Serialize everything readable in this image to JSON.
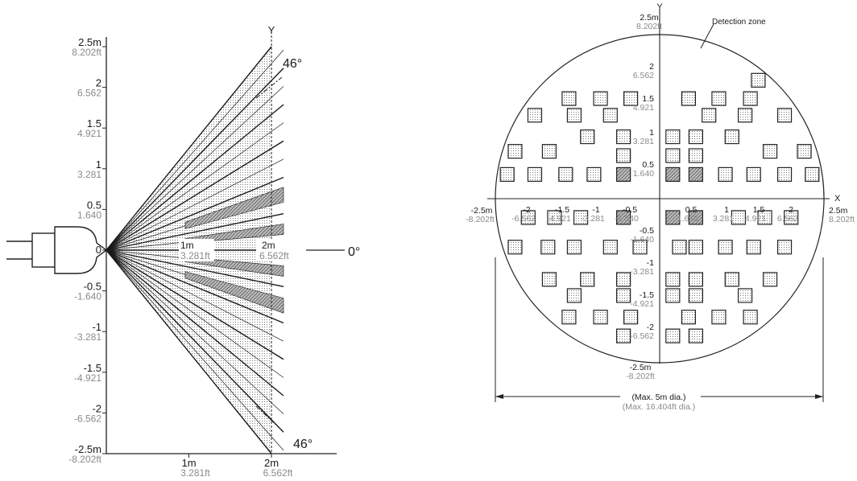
{
  "side_view": {
    "y_axis_title": "Y",
    "y_ticks": [
      {
        "m": "2.5m",
        "ft": "8.202ft",
        "value": 2.5
      },
      {
        "m": "2",
        "ft": "6.562",
        "value": 2
      },
      {
        "m": "1.5",
        "ft": "4.921",
        "value": 1.5
      },
      {
        "m": "1",
        "ft": "3.281",
        "value": 1
      },
      {
        "m": "0.5",
        "ft": "1.640",
        "value": 0.5
      },
      {
        "m": "0",
        "ft": "",
        "value": 0
      },
      {
        "m": "-0.5",
        "ft": "-1.640",
        "value": -0.5
      },
      {
        "m": "-1",
        "ft": "-3.281",
        "value": -1
      },
      {
        "m": "-1.5",
        "ft": "-4.921",
        "value": -1.5
      },
      {
        "m": "-2",
        "ft": "-6.562",
        "value": -2
      },
      {
        "m": "-2.5m",
        "ft": "-8.202ft",
        "value": -2.5
      }
    ],
    "x_ticks": [
      {
        "m": "1m",
        "ft": "3.281ft",
        "value": 1
      },
      {
        "m": "2m",
        "ft": "6.562ft",
        "value": 2
      }
    ],
    "inner_labels": [
      {
        "m": "1m",
        "ft": "3.281ft"
      },
      {
        "m": "2m",
        "ft": "6.562ft"
      }
    ],
    "angle_top": "46°",
    "angle_bottom": "46°",
    "angle_center": "0°",
    "max_half_width_m": 2.5,
    "reach_m": 2
  },
  "top_view": {
    "y_axis_title": "Y",
    "x_axis_title": "X",
    "detection_zone_label": "Detection zone",
    "y_top": {
      "m": "2.5m",
      "ft": "8.202ft"
    },
    "y_bottom": {
      "m": "-2.5m",
      "ft": "-8.202ft"
    },
    "y_ticks_pos": [
      {
        "m": "2",
        "ft": "6.562"
      },
      {
        "m": "1.5",
        "ft": "4.921"
      },
      {
        "m": "1",
        "ft": "3.281"
      },
      {
        "m": "0.5",
        "ft": "1.640"
      }
    ],
    "y_ticks_neg": [
      {
        "m": "-0.5",
        "ft": "-1.640"
      },
      {
        "m": "-1",
        "ft": "-3.281"
      },
      {
        "m": "-1.5",
        "ft": "-4.921"
      },
      {
        "m": "-2",
        "ft": "-6.562"
      }
    ],
    "x_left": {
      "m": "-2.5m",
      "ft": "-8.202ft"
    },
    "x_right": {
      "m": "2.5m",
      "ft": "8.202ft"
    },
    "x_ticks_neg": [
      {
        "m": "-2",
        "ft": "-6.562"
      },
      {
        "m": "-1.5",
        "ft": "-4.921"
      },
      {
        "m": "-1",
        "ft": "-3.281"
      },
      {
        "m": "-0.5",
        "ft": "-1.640"
      }
    ],
    "x_ticks_pos": [
      {
        "m": "0.5",
        "ft": "1.640"
      },
      {
        "m": "1",
        "ft": "3.281"
      },
      {
        "m": "1.5",
        "ft": "4.921"
      },
      {
        "m": "2",
        "ft": "6.562"
      }
    ],
    "diameter_m": "(Max. 5m dia.)",
    "diameter_ft": "(Max. 16.404ft dia.)"
  }
}
